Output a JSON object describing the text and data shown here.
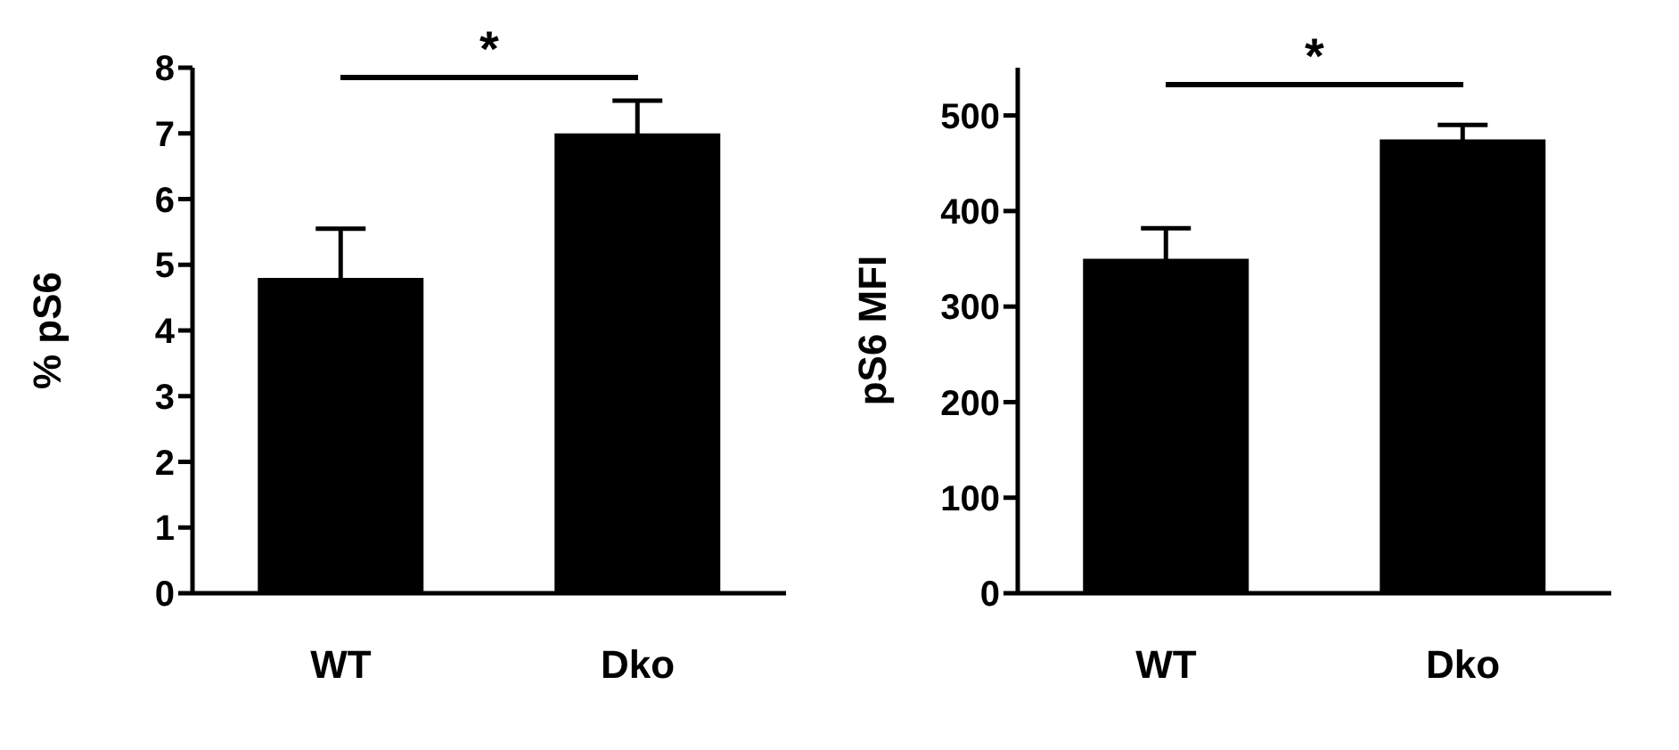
{
  "chart_data": [
    {
      "type": "bar",
      "ylabel": "% pS6",
      "categories": [
        "WT",
        "Dko"
      ],
      "series": [
        {
          "color": "#000000",
          "values": [
            4.8,
            7.0
          ],
          "errors": [
            0.75,
            0.5
          ]
        }
      ],
      "ylim": [
        0,
        8
      ],
      "yticks": [
        0,
        1,
        2,
        3,
        4,
        5,
        6,
        7,
        8
      ],
      "grid": false,
      "legend": false,
      "annotations": [
        "*"
      ]
    },
    {
      "type": "bar",
      "ylabel": "pS6 MFI",
      "categories": [
        "WT",
        "Dko"
      ],
      "series": [
        {
          "color": "#000000",
          "values": [
            350,
            475
          ],
          "errors": [
            32,
            15
          ]
        }
      ],
      "ylim": [
        0,
        550
      ],
      "yticks": [
        0,
        100,
        200,
        300,
        400,
        500
      ],
      "grid": false,
      "legend": false,
      "annotations": [
        "*"
      ]
    }
  ]
}
